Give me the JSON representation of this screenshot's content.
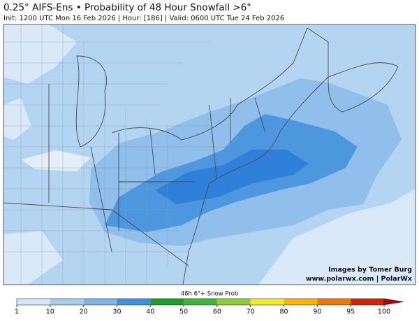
{
  "title": "0.25° AIFS-Ens • Probability of 48 Hour Snowfall >6\"",
  "subtitle": "Init: 1200 UTC Mon 16 Feb 2026 | Hour: [186] | Valid: 0600 UTC Tue 24 Feb 2026",
  "credits": [
    "Images by Tomer Burg",
    "www.polarwx.com | PolarWx"
  ],
  "colorbar": {
    "title": "48h 6\"+ Snow Prob",
    "ticks": [
      1,
      10,
      20,
      30,
      40,
      50,
      60,
      70,
      80,
      90,
      95,
      100
    ],
    "colors": [
      "#d6e8f7",
      "#a9cdee",
      "#7fb4e6",
      "#3f8fdc",
      "#1f9d2a",
      "#3db53d",
      "#8ccd3c",
      "#eeee22",
      "#f5b800",
      "#f07a00",
      "#d81e05",
      "#b00000"
    ]
  }
}
